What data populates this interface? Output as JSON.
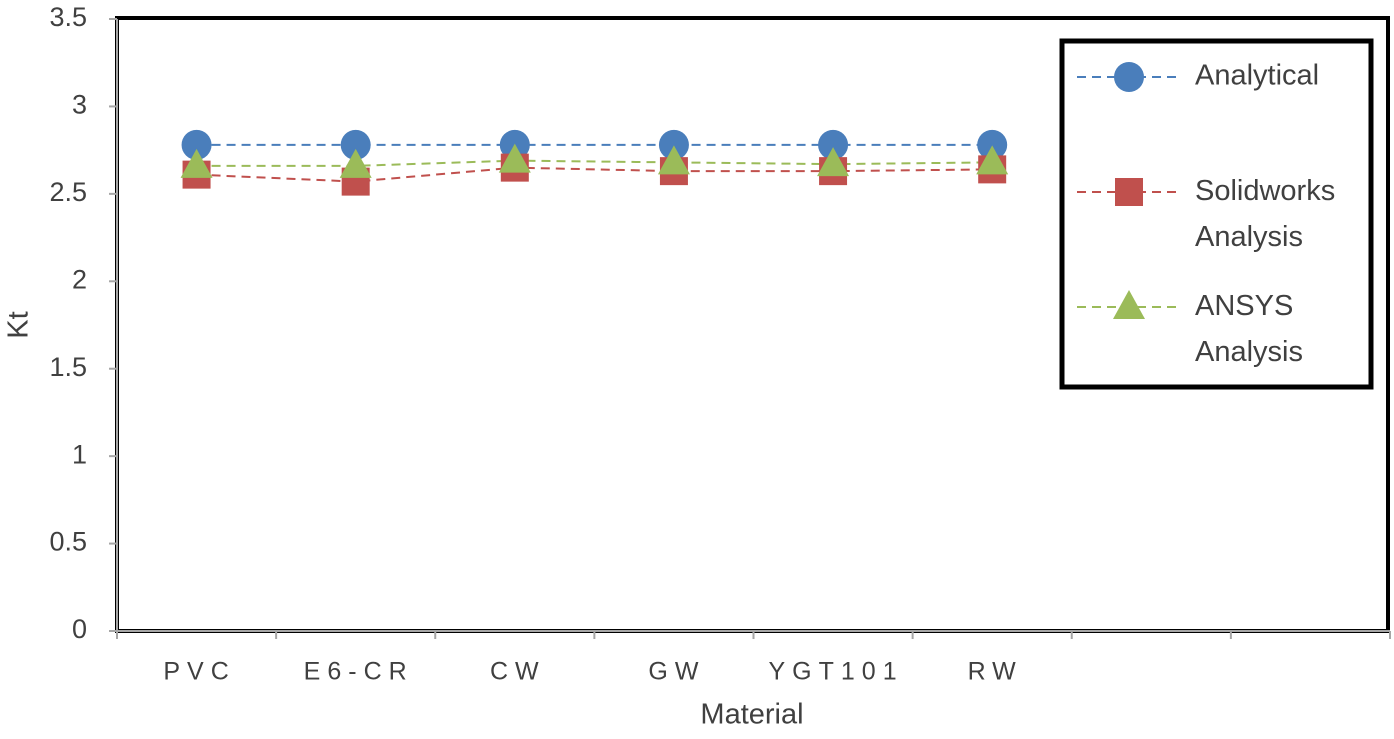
{
  "chart_data": {
    "type": "line",
    "x_label": "Material",
    "y_label": "Kt",
    "categories": [
      "PVC",
      "E6-CR",
      "CW",
      "GW",
      "YGT101",
      "RW",
      null,
      null
    ],
    "series": [
      {
        "name": "Analytical",
        "color": "#4a7ebb",
        "marker": "circle",
        "values": [
          2.78,
          2.78,
          2.78,
          2.78,
          2.78,
          2.78,
          null,
          null
        ]
      },
      {
        "name": "Solidworks Analysis",
        "color": "#c0504d",
        "marker": "square",
        "values": [
          2.61,
          2.57,
          2.65,
          2.63,
          2.63,
          2.64,
          null,
          null
        ]
      },
      {
        "name": "ANSYS Analysis",
        "color": "#9bbb59",
        "marker": "triangle",
        "values": [
          2.66,
          2.66,
          2.69,
          2.68,
          2.67,
          2.68,
          null,
          null
        ]
      }
    ],
    "ylim": [
      0,
      3.5
    ],
    "yticks": [
      0,
      0.5,
      1,
      1.5,
      2,
      2.5,
      3,
      3.5
    ],
    "legend": "top-right",
    "line_style": "dashed"
  }
}
